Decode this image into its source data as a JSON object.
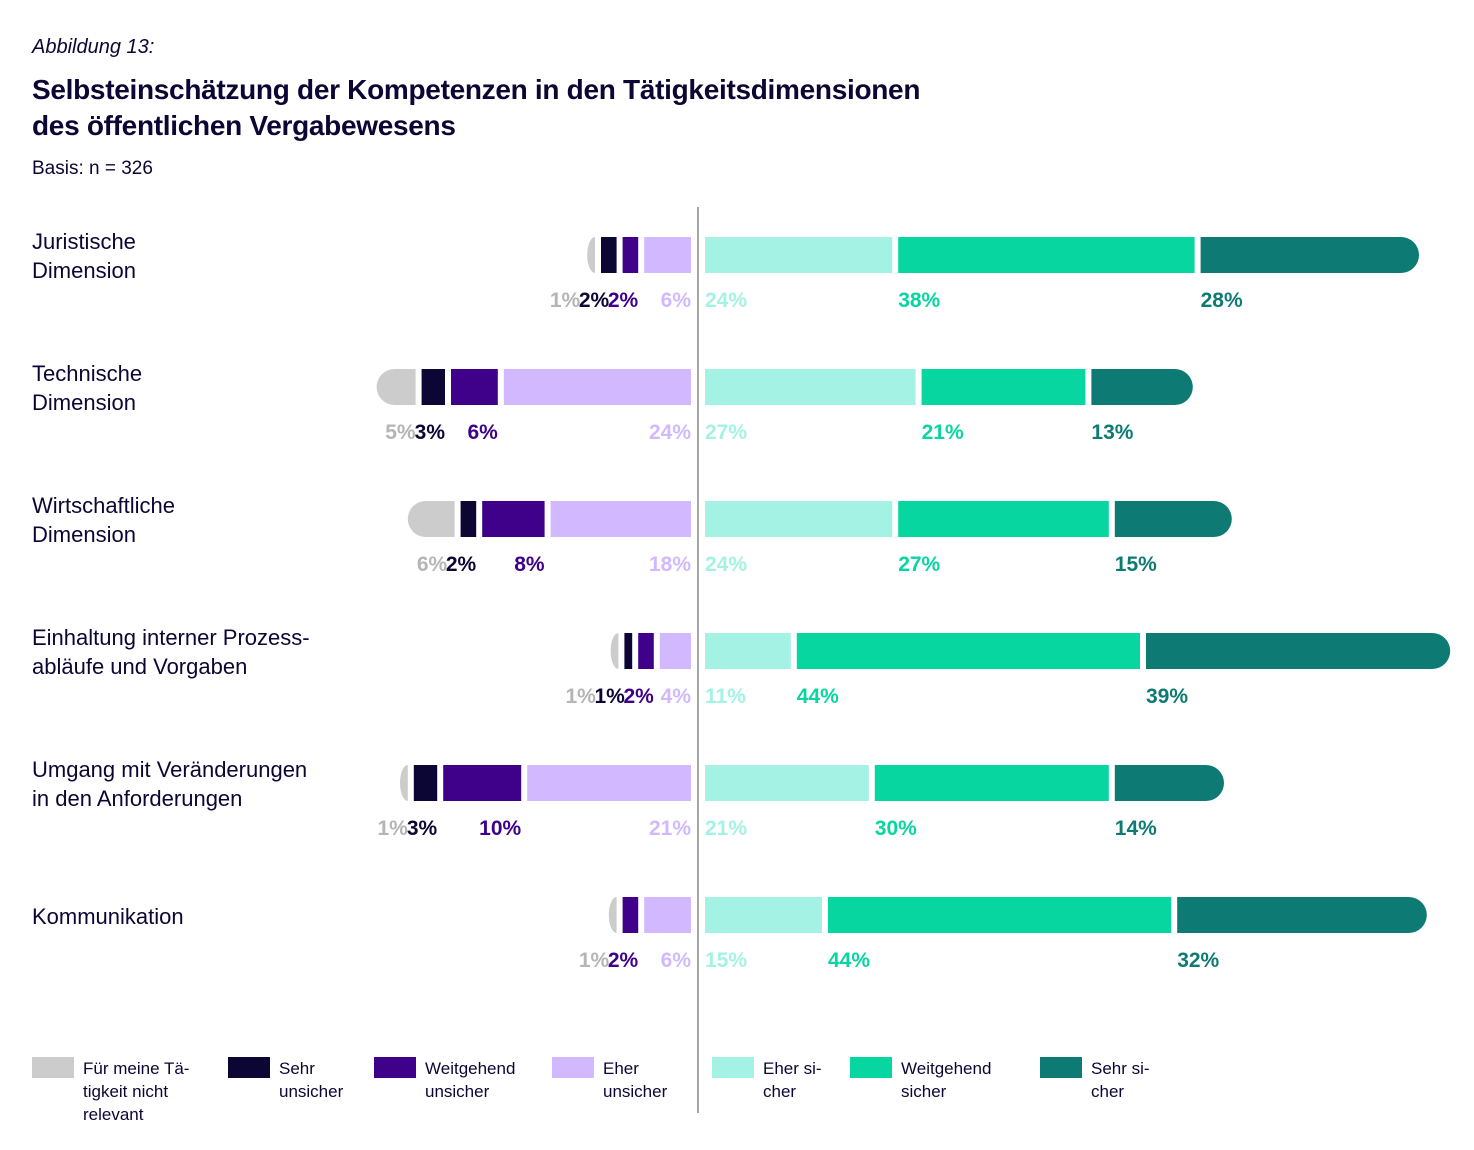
{
  "header": {
    "figure_label": "Abbildung 13:",
    "title_line1": "Selbsteinschätzung der Kompetenzen in den Tätigkeitsdimensionen",
    "title_line2": "des öffentlichen Vergabewesens",
    "basis": "Basis: n = 326"
  },
  "chart_data": {
    "type": "bar",
    "orientation": "horizontal-diverging-stacked",
    "title": "Selbsteinschätzung der Kompetenzen in den Tätigkeitsdimensionen des öffentlichen Vergabewesens",
    "subtitle": "Basis: n = 326",
    "unit": "%",
    "categories": [
      [
        "Juristische",
        "Dimension"
      ],
      [
        "Technische",
        "Dimension"
      ],
      [
        "Wirtschaftliche",
        "Dimension"
      ],
      [
        "Einhaltung interner Prozess-",
        "abläufe und Vorgaben"
      ],
      [
        "Umgang mit Veränderungen",
        "in den Anforderungen"
      ],
      [
        "Kommunikation"
      ]
    ],
    "negative_series": [
      {
        "name": "Für meine Tätigkeit nicht relevant",
        "legend": [
          "Für meine Tä-",
          "tigkeit nicht",
          "relevant"
        ],
        "color": "#cccccc",
        "label_color": "#b5b5b5",
        "values": [
          1,
          5,
          6,
          1,
          1,
          1
        ]
      },
      {
        "name": "Sehr unsicher",
        "legend": [
          "Sehr",
          "unsicher"
        ],
        "color": "#0b0633",
        "label_color": "#0b0633",
        "values": [
          2,
          3,
          2,
          1,
          3,
          0
        ]
      },
      {
        "name": "Weitgehend unsicher",
        "legend": [
          "Weitgehend",
          "unsicher"
        ],
        "color": "#3f008a",
        "label_color": "#3f008a",
        "values": [
          2,
          6,
          8,
          2,
          10,
          2
        ]
      },
      {
        "name": "Eher unsicher",
        "legend": [
          "Eher",
          "unsicher"
        ],
        "color": "#d2b9ff",
        "label_color": "#d2b9ff",
        "values": [
          6,
          24,
          18,
          4,
          21,
          6
        ]
      }
    ],
    "positive_series": [
      {
        "name": "Eher sicher",
        "legend": [
          "Eher si-",
          "cher"
        ],
        "color": "#a3f2e3",
        "label_color": "#a3f2e3",
        "values": [
          24,
          27,
          24,
          11,
          21,
          15
        ]
      },
      {
        "name": "Weitgehend sicher",
        "legend": [
          "Weitgehend",
          "sicher"
        ],
        "color": "#07d6a0",
        "label_color": "#07d6a0",
        "values": [
          38,
          21,
          27,
          44,
          30,
          44
        ]
      },
      {
        "name": "Sehr sicher",
        "legend": [
          "Sehr si-",
          "cher"
        ],
        "color": "#0d7a73",
        "label_color": "#0d7a73",
        "values": [
          28,
          13,
          15,
          39,
          14,
          32
        ]
      }
    ],
    "legend_position": "bottom",
    "grid": false
  }
}
